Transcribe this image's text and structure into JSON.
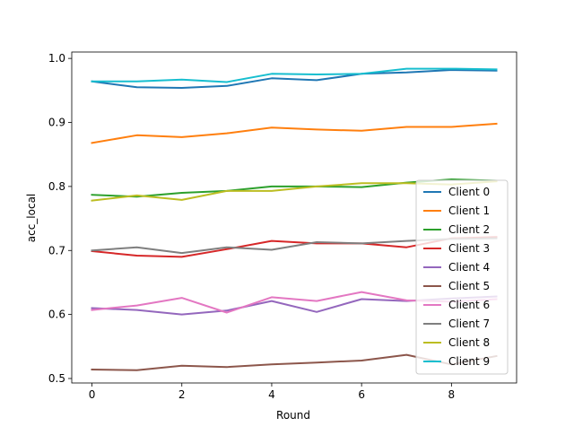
{
  "chart_data": {
    "type": "line",
    "title": "",
    "xlabel": "Round",
    "ylabel": "acc_local",
    "x": [
      0,
      1,
      2,
      3,
      4,
      5,
      6,
      7,
      8,
      9
    ],
    "xlim": [
      -0.45,
      9.45
    ],
    "ylim": [
      0.493,
      1.01
    ],
    "xticks": [
      0,
      2,
      4,
      6,
      8
    ],
    "yticks": [
      0.5,
      0.6,
      0.7,
      0.8,
      0.9,
      1.0
    ],
    "ytick_labels": [
      "0.5",
      "0.6",
      "0.7",
      "0.8",
      "0.9",
      "1.0"
    ],
    "grid": false,
    "legend_position": "lower-right",
    "series": [
      {
        "name": "Client 0",
        "color": "#1f77b4",
        "values": [
          0.964,
          0.955,
          0.954,
          0.957,
          0.969,
          0.966,
          0.976,
          0.978,
          0.982,
          0.981
        ]
      },
      {
        "name": "Client 1",
        "color": "#ff7f0e",
        "values": [
          0.868,
          0.88,
          0.877,
          0.883,
          0.892,
          0.889,
          0.887,
          0.893,
          0.893,
          0.898
        ]
      },
      {
        "name": "Client 2",
        "color": "#2ca02c",
        "values": [
          0.787,
          0.784,
          0.79,
          0.793,
          0.8,
          0.8,
          0.799,
          0.806,
          0.811,
          0.809
        ]
      },
      {
        "name": "Client 3",
        "color": "#d62728",
        "values": [
          0.699,
          0.692,
          0.69,
          0.702,
          0.715,
          0.711,
          0.711,
          0.705,
          0.719,
          0.721
        ]
      },
      {
        "name": "Client 4",
        "color": "#9467bd",
        "values": [
          0.61,
          0.607,
          0.6,
          0.606,
          0.621,
          0.604,
          0.624,
          0.621,
          0.625,
          0.628
        ]
      },
      {
        "name": "Client 5",
        "color": "#8c564b",
        "values": [
          0.514,
          0.513,
          0.52,
          0.518,
          0.522,
          0.525,
          0.528,
          0.537,
          0.522,
          0.535
        ]
      },
      {
        "name": "Client 6",
        "color": "#e377c2",
        "values": [
          0.607,
          0.614,
          0.626,
          0.603,
          0.627,
          0.621,
          0.635,
          0.622,
          0.62,
          0.624
        ]
      },
      {
        "name": "Client 7",
        "color": "#7f7f7f",
        "values": [
          0.7,
          0.705,
          0.696,
          0.705,
          0.701,
          0.713,
          0.711,
          0.715,
          0.718,
          0.719
        ]
      },
      {
        "name": "Client 8",
        "color": "#bcbd22",
        "values": [
          0.778,
          0.786,
          0.779,
          0.793,
          0.793,
          0.8,
          0.805,
          0.805,
          0.803,
          0.808
        ]
      },
      {
        "name": "Client 9",
        "color": "#17becf",
        "values": [
          0.964,
          0.964,
          0.967,
          0.963,
          0.976,
          0.975,
          0.976,
          0.984,
          0.984,
          0.983
        ]
      }
    ]
  }
}
